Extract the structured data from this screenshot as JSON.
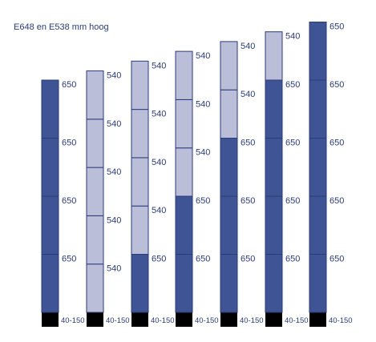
{
  "title": "E648 en E538 mm hoog",
  "colors": {
    "dark_segment": "#3f5494",
    "light_segment": "#babed9",
    "base": "#000000",
    "outline": "#2a3b78",
    "label": "#2a3b78"
  },
  "base_label": "40-150",
  "segment_labels": {
    "dark": "650",
    "light": "540"
  },
  "columns": [
    {
      "id": 1,
      "segments": [
        "dark",
        "dark",
        "dark",
        "dark"
      ]
    },
    {
      "id": 2,
      "segments": [
        "light",
        "light",
        "light",
        "light",
        "light"
      ]
    },
    {
      "id": 3,
      "segments": [
        "dark",
        "light",
        "light",
        "light",
        "light"
      ]
    },
    {
      "id": 4,
      "segments": [
        "dark",
        "dark",
        "light",
        "light",
        "light"
      ]
    },
    {
      "id": 5,
      "segments": [
        "dark",
        "dark",
        "dark",
        "light",
        "light"
      ]
    },
    {
      "id": 6,
      "segments": [
        "dark",
        "dark",
        "dark",
        "dark",
        "light"
      ]
    },
    {
      "id": 7,
      "segments": [
        "dark",
        "dark",
        "dark",
        "dark",
        "dark"
      ]
    }
  ]
}
